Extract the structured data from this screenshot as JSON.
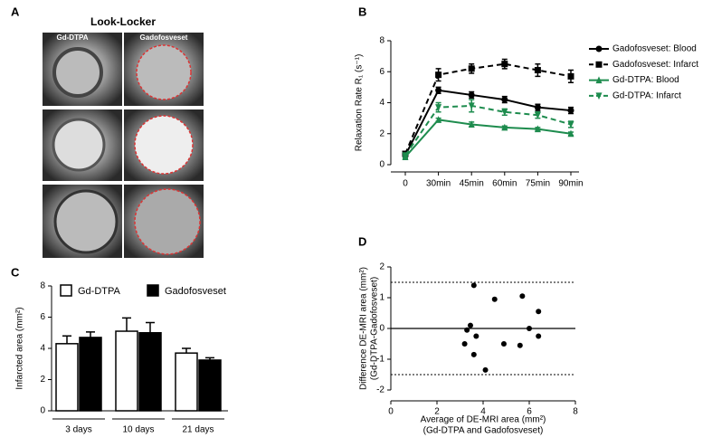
{
  "panel_a": {
    "label": "A",
    "title": "Look-Locker",
    "columns": [
      "Gd-DTPA",
      "Gadofosveset"
    ]
  },
  "chart_data": [
    {
      "type": "line",
      "label": "B",
      "ylabel": "Relaxation Rate R₁ (s⁻¹)",
      "categories": [
        "0",
        "30min",
        "45min",
        "60min",
        "75min",
        "90min"
      ],
      "ylim": [
        0,
        8
      ],
      "yticks": [
        0,
        2,
        4,
        6,
        8
      ],
      "series": [
        {
          "name": "Gadofosveset: Blood",
          "color": "#000000",
          "dashed": false,
          "marker": "circle",
          "values": [
            0.6,
            4.8,
            4.5,
            4.2,
            3.7,
            3.5
          ],
          "errors": [
            0.1,
            0.2,
            0.2,
            0.2,
            0.2,
            0.2
          ]
        },
        {
          "name": "Gadofosveset: Infarct",
          "color": "#000000",
          "dashed": true,
          "marker": "square",
          "values": [
            0.7,
            5.8,
            6.2,
            6.5,
            6.1,
            5.7
          ],
          "errors": [
            0.1,
            0.4,
            0.3,
            0.3,
            0.4,
            0.4
          ]
        },
        {
          "name": "Gd-DTPA: Blood",
          "color": "#1e8c4e",
          "dashed": false,
          "marker": "triangle-up",
          "values": [
            0.5,
            2.9,
            2.6,
            2.4,
            2.3,
            2.0
          ],
          "errors": [
            0.1,
            0.1,
            0.15,
            0.1,
            0.1,
            0.1
          ]
        },
        {
          "name": "Gd-DTPA: Infarct",
          "color": "#1e8c4e",
          "dashed": true,
          "marker": "triangle-down",
          "values": [
            0.6,
            3.7,
            3.8,
            3.4,
            3.2,
            2.6
          ],
          "errors": [
            0.1,
            0.3,
            0.4,
            0.2,
            0.2,
            0.2
          ]
        }
      ]
    },
    {
      "type": "bar",
      "label": "C",
      "ylabel": "Infarcted area (mm²)",
      "categories": [
        "3 days",
        "10 days",
        "21 days"
      ],
      "ylim": [
        0,
        8
      ],
      "yticks": [
        0,
        2,
        4,
        6,
        8
      ],
      "series": [
        {
          "name": "Gd-DTPA",
          "color": "#ffffff",
          "values": [
            4.3,
            5.1,
            3.7
          ],
          "errors": [
            0.5,
            0.85,
            0.3
          ]
        },
        {
          "name": "Gadofosveset",
          "color": "#000000",
          "values": [
            4.7,
            5.0,
            3.25
          ],
          "errors": [
            0.35,
            0.65,
            0.15
          ]
        }
      ]
    },
    {
      "type": "scatter",
      "label": "D",
      "xlabel": [
        "Average of DE-MRI area (mm²)",
        "(Gd-DTPA and Gadofosveset)"
      ],
      "ylabel": [
        "Difference  DE-MRI area (mm²)",
        "(Gd-DTPA-Gadofosveset)"
      ],
      "xlim": [
        0,
        8
      ],
      "xticks": [
        0,
        2,
        4,
        6,
        8
      ],
      "ylim": [
        -2,
        2
      ],
      "yticks": [
        -2,
        -1,
        0,
        1,
        2
      ],
      "hlines": [
        {
          "value": 1.5,
          "dashed": true
        },
        {
          "value": 0,
          "dashed": false
        },
        {
          "value": -1.5,
          "dashed": true
        }
      ],
      "color": "#000000",
      "x": [
        3.2,
        3.3,
        3.45,
        3.6,
        3.6,
        3.7,
        4.1,
        4.5,
        4.9,
        5.6,
        5.7,
        6.0,
        6.4,
        6.4
      ],
      "values": [
        -0.5,
        -0.05,
        0.1,
        1.4,
        -0.85,
        -0.25,
        -1.35,
        0.95,
        -0.5,
        -0.55,
        1.05,
        0.0,
        0.55,
        -0.25
      ]
    }
  ]
}
